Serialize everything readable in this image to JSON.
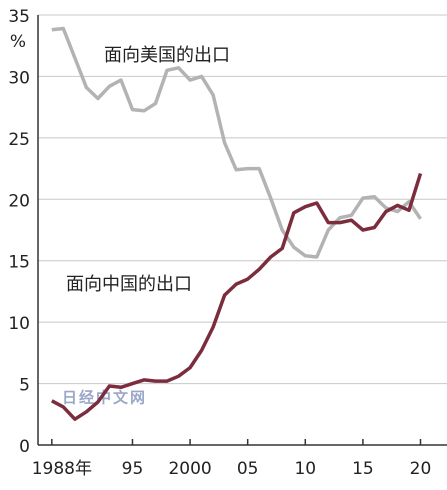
{
  "chart_data": {
    "type": "line",
    "annotations": [
      "面向美国的出口",
      "面向中国的出口"
    ],
    "y_unit": "%",
    "watermark": "日经中文网",
    "x": [
      1988,
      1989,
      1990,
      1991,
      1992,
      1993,
      1994,
      1995,
      1996,
      1997,
      1998,
      1999,
      2000,
      2001,
      2002,
      2003,
      2004,
      2005,
      2006,
      2007,
      2008,
      2009,
      2010,
      2011,
      2012,
      2013,
      2014,
      2015,
      2016,
      2017,
      2018,
      2019,
      2020
    ],
    "series": [
      {
        "name": "面向美国的出口",
        "color": "#b3b3b3",
        "values": [
          33.8,
          33.9,
          31.5,
          29.1,
          28.2,
          29.2,
          29.7,
          27.3,
          27.2,
          27.8,
          30.5,
          30.7,
          29.7,
          30.0,
          28.5,
          24.6,
          22.4,
          22.5,
          22.5,
          20.1,
          17.5,
          16.1,
          15.4,
          15.3,
          17.5,
          18.5,
          18.7,
          20.1,
          20.2,
          19.3,
          19.0,
          19.8,
          18.4
        ]
      },
      {
        "name": "面向中国的出口",
        "color": "#7b2c3d",
        "values": [
          3.6,
          3.1,
          2.1,
          2.7,
          3.5,
          4.8,
          4.7,
          5.0,
          5.3,
          5.2,
          5.2,
          5.6,
          6.3,
          7.7,
          9.6,
          12.2,
          13.1,
          13.5,
          14.3,
          15.3,
          16.0,
          18.9,
          19.4,
          19.7,
          18.1,
          18.1,
          18.3,
          17.5,
          17.7,
          19.0,
          19.5,
          19.1,
          22.1
        ]
      }
    ],
    "xlim": [
      1986.8,
      2022.3
    ],
    "xticks": [
      {
        "value": 1988,
        "label": "1988年"
      },
      {
        "value": 1995,
        "label": "95"
      },
      {
        "value": 2000,
        "label": "2000"
      },
      {
        "value": 2005,
        "label": "05"
      },
      {
        "value": 2010,
        "label": "10"
      },
      {
        "value": 2015,
        "label": "15"
      },
      {
        "value": 2020,
        "label": "20"
      }
    ],
    "ylim": [
      0,
      35
    ],
    "yticks": [
      0,
      5,
      10,
      15,
      20,
      25,
      30,
      35
    ],
    "grid": true
  }
}
